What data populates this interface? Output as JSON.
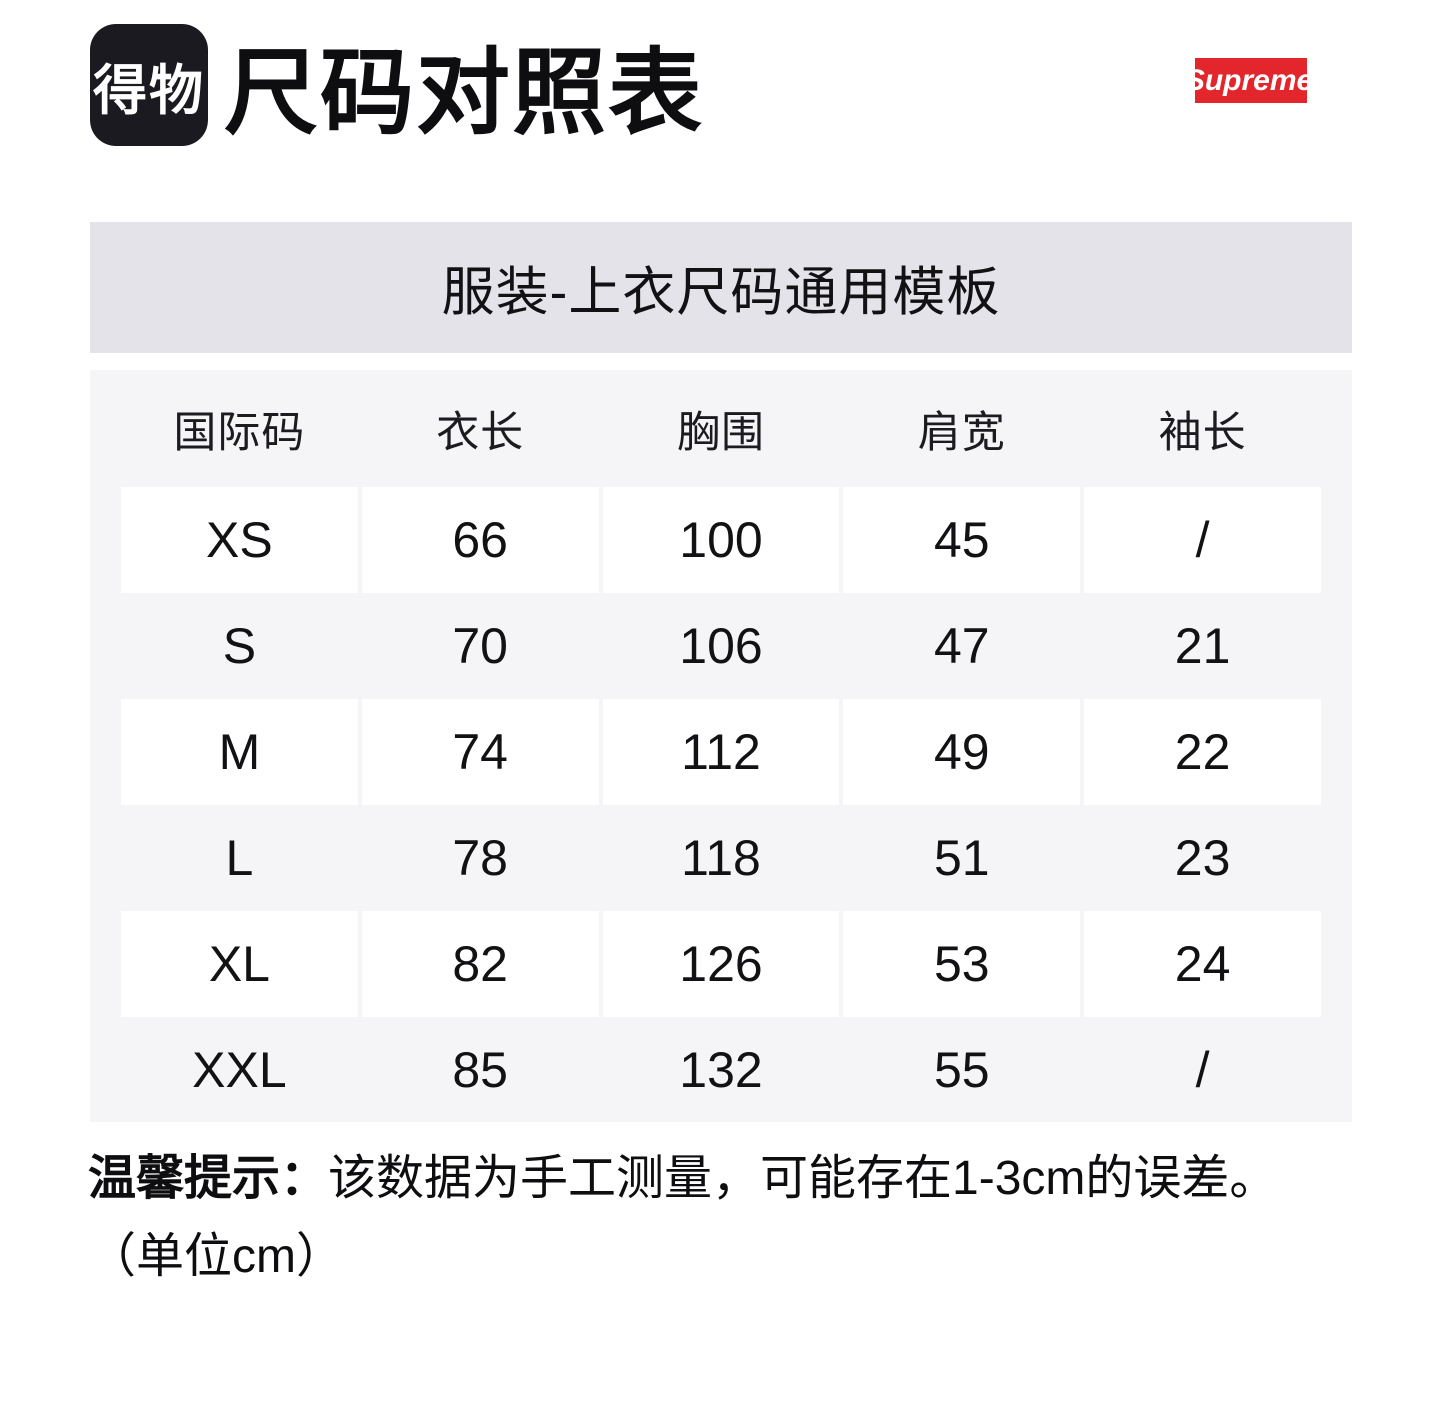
{
  "brand": {
    "logo_text": "得物",
    "page_title": "尺码对照表",
    "badge_label": "Supreme"
  },
  "template_header": "服装-上衣尺码通用模板",
  "table": {
    "columns": [
      "国际码",
      "衣长",
      "胸围",
      "肩宽",
      "袖长"
    ],
    "rows": [
      {
        "cells": [
          "XS",
          "66",
          "100",
          "45",
          "/"
        ]
      },
      {
        "cells": [
          "S",
          "70",
          "106",
          "47",
          "21"
        ]
      },
      {
        "cells": [
          "M",
          "74",
          "112",
          "49",
          "22"
        ]
      },
      {
        "cells": [
          "L",
          "78",
          "118",
          "51",
          "23"
        ]
      },
      {
        "cells": [
          "XL",
          "82",
          "126",
          "53",
          "24"
        ]
      },
      {
        "cells": [
          "XXL",
          "85",
          "132",
          "55",
          "/"
        ]
      }
    ]
  },
  "note": {
    "label": "温馨提示：",
    "text": "该数据为手工测量，可能存在1-3cm的误差。",
    "unit_line": "（单位cm）"
  },
  "colors": {
    "badge_red": "#e2262c",
    "logo_bg": "#1a1a20",
    "header_bar_bg": "#e3e3e9",
    "table_bg": "#f5f5f8",
    "cell_bg": "#ffffff",
    "text": "#121215"
  }
}
